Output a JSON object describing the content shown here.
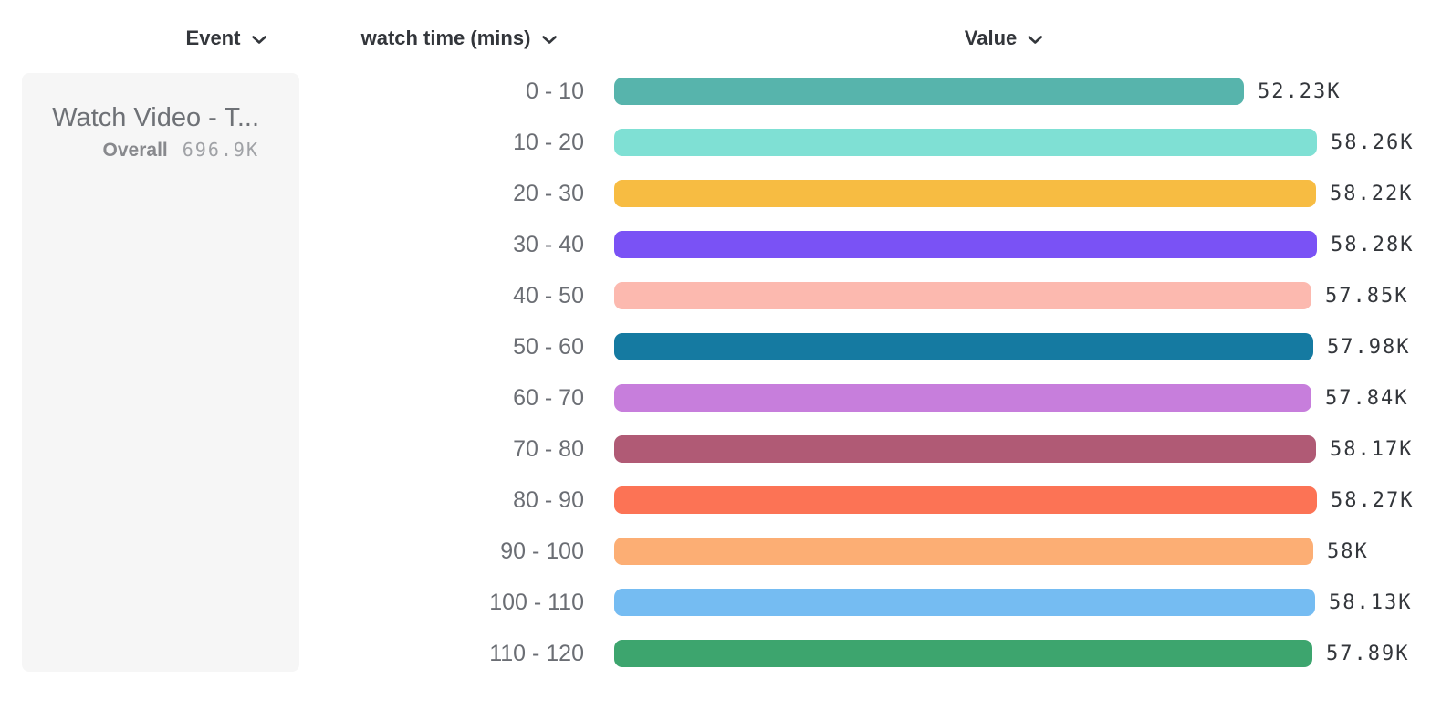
{
  "header": {
    "event_column": "Event",
    "breakdown_column": "watch time (mins)",
    "value_column": "Value"
  },
  "event_card": {
    "title": "Watch Video - T...",
    "overall_label": "Overall",
    "overall_value": "696.9K"
  },
  "chart_data": {
    "type": "bar",
    "orientation": "horizontal",
    "title": "",
    "xlabel": "Value",
    "ylabel": "watch time (mins)",
    "grid": false,
    "legend": false,
    "xlim": [
      0,
      58280
    ],
    "categories": [
      "0 - 10",
      "10 - 20",
      "20 - 30",
      "30 - 40",
      "40 - 50",
      "50 - 60",
      "60 - 70",
      "70 - 80",
      "80 - 90",
      "90 - 100",
      "100 - 110",
      "110 - 120"
    ],
    "values": [
      52230,
      58260,
      58220,
      58280,
      57850,
      57980,
      57840,
      58170,
      58270,
      58000,
      58130,
      57890
    ],
    "value_labels": [
      "52.23K",
      "58.26K",
      "58.22K",
      "58.28K",
      "57.85K",
      "57.98K",
      "57.84K",
      "58.17K",
      "58.27K",
      "58K",
      "58.13K",
      "57.89K"
    ],
    "colors": [
      "#57b4ac",
      "#7fe0d4",
      "#f7bc42",
      "#7a52f5",
      "#fcb9af",
      "#157aa1",
      "#c77edc",
      "#b05a75",
      "#fc7355",
      "#fcae74",
      "#75bcf2",
      "#3da56e"
    ]
  }
}
